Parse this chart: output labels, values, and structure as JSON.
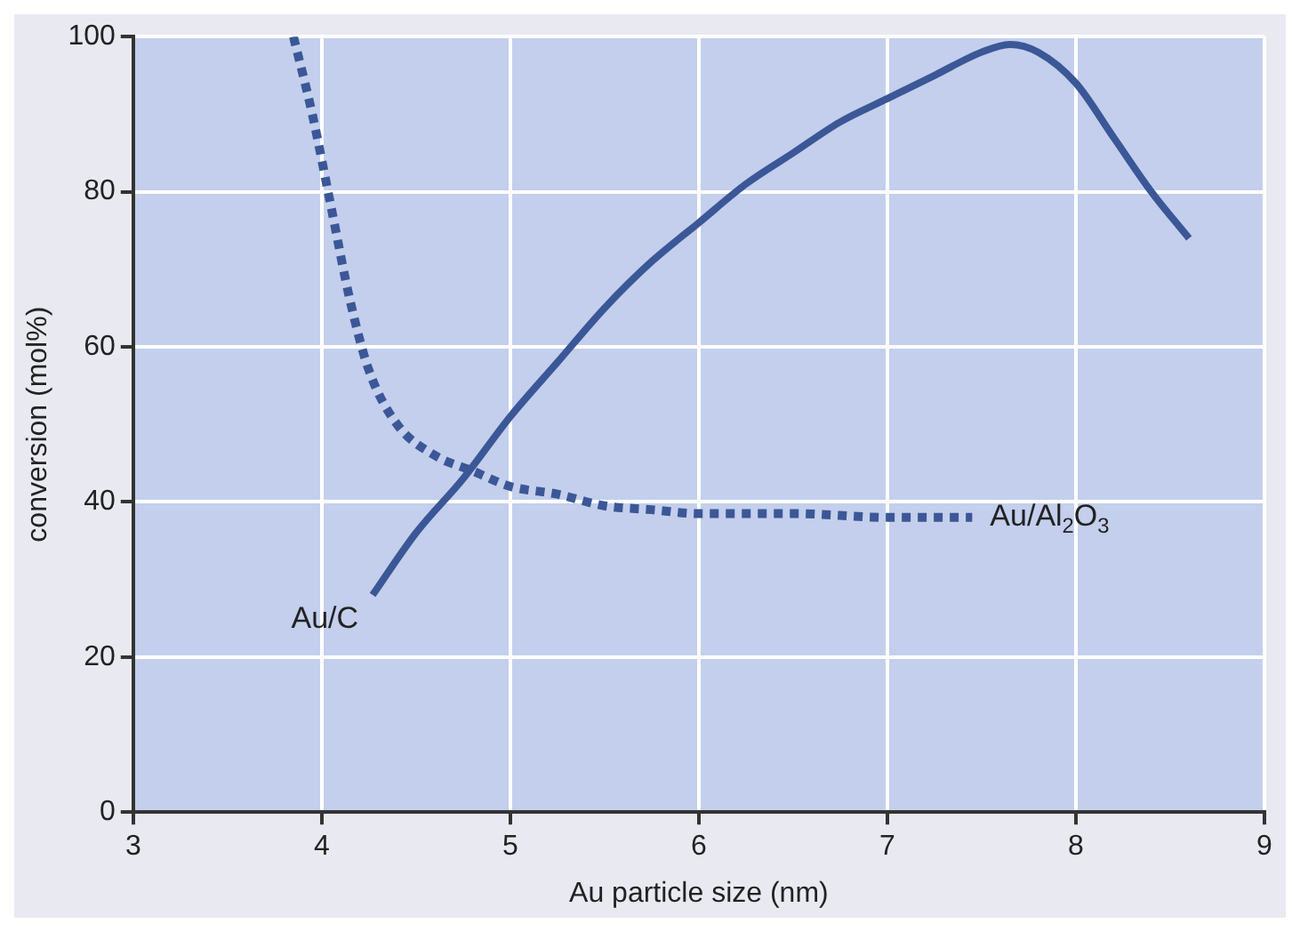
{
  "chart_data": {
    "type": "line",
    "xlabel": "Au particle size (nm)",
    "ylabel": "conversion (mol%)",
    "xlim": [
      3,
      9
    ],
    "xticks": [
      3,
      4,
      5,
      6,
      7,
      8,
      9
    ],
    "ylim": [
      0,
      100
    ],
    "yticks": [
      0,
      20,
      40,
      60,
      80,
      100
    ],
    "grid": true,
    "legend": false,
    "marker": "none",
    "series": [
      {
        "name": "Au/C",
        "color": "#3b5797",
        "line_style": "solid",
        "x": [
          4.27,
          4.5,
          4.75,
          5.0,
          5.25,
          5.5,
          5.75,
          6.0,
          6.25,
          6.5,
          6.75,
          7.0,
          7.25,
          7.5,
          7.65,
          7.8,
          8.0,
          8.2,
          8.4,
          8.6
        ],
        "values": [
          28,
          36,
          43,
          51,
          58,
          65,
          71,
          76,
          81,
          85,
          89,
          92,
          95,
          98,
          99,
          98,
          94,
          87,
          80,
          74
        ]
      },
      {
        "name": "Au/Al$_{2}$O$_{3}$",
        "color": "#3b5797",
        "line_style": "dotted",
        "x": [
          3.85,
          3.95,
          4.05,
          4.15,
          4.25,
          4.4,
          4.6,
          4.8,
          5.0,
          5.25,
          5.5,
          5.75,
          6.0,
          6.5,
          7.0,
          7.45
        ],
        "values": [
          100,
          90,
          78,
          66,
          57,
          50,
          46,
          44,
          42,
          41,
          39.5,
          39,
          38.5,
          38.5,
          38,
          38
        ]
      }
    ]
  }
}
